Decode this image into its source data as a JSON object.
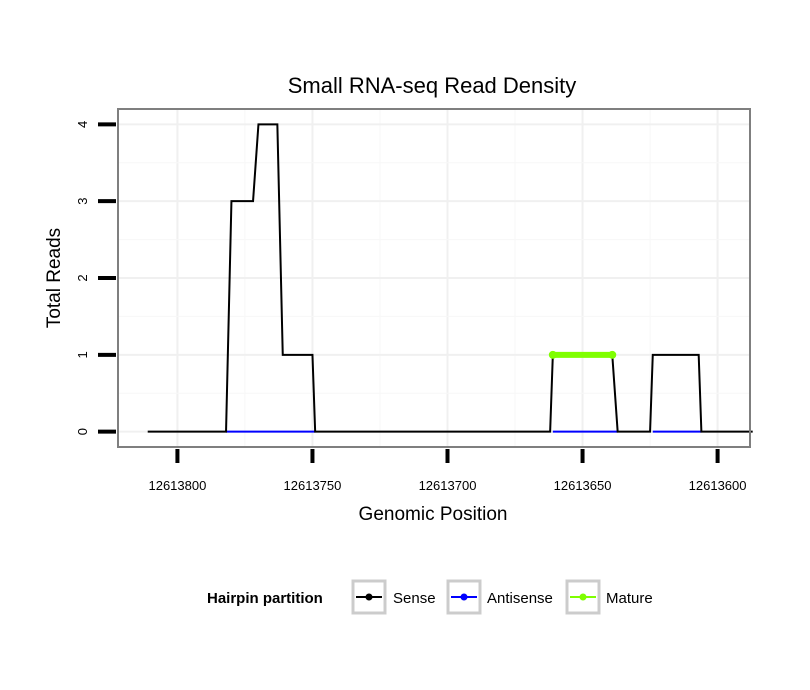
{
  "chart_data": {
    "type": "line",
    "title": "Small RNA-seq Read Density",
    "xlabel": "Genomic Position",
    "ylabel": "Total Reads",
    "x_reversed": true,
    "xlim": [
      12613822,
      12613588
    ],
    "ylim": [
      -0.2,
      4.2
    ],
    "x_ticks": [
      12613800,
      12613750,
      12613700,
      12613650,
      12613600
    ],
    "x_tick_labels": [
      "12613800",
      "12613750",
      "12613700",
      "12613650",
      "12613600"
    ],
    "y_ticks": [
      0,
      1,
      2,
      3,
      4
    ],
    "y_tick_labels": [
      "0",
      "1",
      "2",
      "3",
      "4"
    ],
    "grid": true,
    "legend": {
      "title": "Hairpin partition",
      "position": "bottom",
      "entries": [
        "Sense",
        "Antisense",
        "Mature"
      ]
    },
    "series": [
      {
        "name": "Sense",
        "color": "#000000",
        "x": [
          12613811,
          12613782,
          12613780,
          12613772,
          12613770,
          12613763,
          12613761,
          12613750,
          12613749,
          12613662,
          12613661,
          12613639,
          12613637,
          12613625,
          12613624,
          12613607,
          12613606,
          12613587
        ],
        "y": [
          0,
          0,
          3,
          3,
          4,
          4,
          1,
          1,
          0,
          0,
          1,
          1,
          0,
          0,
          1,
          1,
          0,
          0
        ]
      },
      {
        "name": "Antisense",
        "color": "#0000ff",
        "x": [
          12613782,
          12613749,
          12613661,
          12613637,
          12613624,
          12613606
        ],
        "y": [
          0,
          0,
          null,
          0,
          0,
          null
        ],
        "segments": [
          [
            12613782,
            12613749
          ],
          [
            12613661,
            12613637
          ],
          [
            12613624,
            12613606
          ]
        ]
      },
      {
        "name": "Mature",
        "color": "#7fff00",
        "x": [
          12613661,
          12613639
        ],
        "y": [
          1,
          1
        ]
      }
    ]
  }
}
